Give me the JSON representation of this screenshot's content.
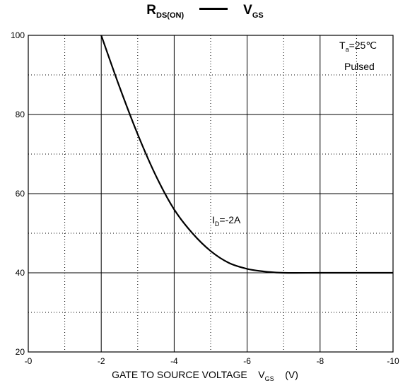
{
  "chart_data": {
    "type": "line",
    "title": {
      "main": "R",
      "main_sub": "DS(ON)",
      "vs": "V",
      "vs_sub": "GS"
    },
    "xlabel": {
      "text": "GATE TO SOURCE VOLTAGE",
      "var": "V",
      "var_sub": "GS",
      "unit": "(V)"
    },
    "ylabel": "",
    "xlim": [
      0,
      -10
    ],
    "ylim": [
      20,
      100
    ],
    "x_ticks": [
      0,
      -2,
      -4,
      -6,
      -8,
      -10
    ],
    "x_tick_labels": [
      "-0",
      "-2",
      "-4",
      "-6",
      "-8",
      "-10"
    ],
    "y_ticks": [
      20,
      40,
      60,
      80,
      100
    ],
    "y_tick_labels": [
      "20",
      "40",
      "60",
      "80",
      "100"
    ],
    "grid": {
      "major": "solid",
      "minor": "dotted"
    },
    "series": [
      {
        "x": [
          -2.0,
          -2.5,
          -3.0,
          -3.5,
          -4.0,
          -4.5,
          -5.0,
          -5.5,
          -6.0,
          -6.5,
          -7.0,
          -8.0,
          -9.0,
          -10.0
        ],
        "y": [
          100,
          87,
          75,
          64.5,
          56,
          50,
          45.5,
          42.5,
          41,
          40.3,
          40,
          40,
          40,
          40
        ]
      }
    ],
    "annotations": {
      "conditions": {
        "t_main": "T",
        "t_sub": "a",
        "t_val": "=25℃",
        "line2": "Pulsed"
      },
      "curve_label": {
        "main": "I",
        "sub": "D",
        "val": "=-2A"
      }
    },
    "colors": {
      "line": "#000000",
      "grid": "#000000",
      "background": "#ffffff"
    }
  }
}
